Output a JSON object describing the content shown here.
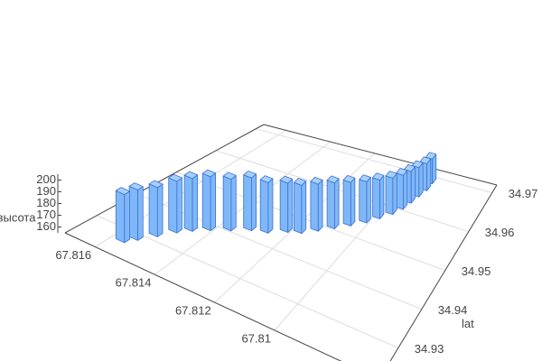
{
  "chart_data": {
    "type": "bar3d",
    "zlabel": "высота",
    "ylabel": "lat",
    "x": [
      67.8157,
      67.8155,
      67.8152,
      67.8149,
      67.8146,
      67.8142,
      67.8137,
      67.8132,
      67.8127,
      67.8122,
      67.8118,
      67.8114,
      67.811,
      67.8106,
      67.8102,
      67.8099,
      67.8096,
      67.8094,
      67.8093,
      67.8092,
      67.8091,
      67.8091
    ],
    "y": [
      34.927,
      34.929,
      34.932,
      34.935,
      34.937,
      34.939,
      34.941,
      34.943,
      34.944,
      34.946,
      34.947,
      34.949,
      34.951,
      34.953,
      34.955,
      34.957,
      34.959,
      34.961,
      34.963,
      34.965,
      34.967,
      34.969
    ],
    "z": [
      196,
      198,
      197,
      199,
      200,
      201,
      199,
      200,
      198,
      197,
      196,
      195,
      194,
      192,
      190,
      188,
      186,
      184,
      182,
      180,
      178,
      176
    ],
    "color": "#7fb8f8",
    "xlim": [
      67.8065,
      67.817
    ],
    "xticks": [
      67.81,
      67.812,
      67.814,
      67.816
    ],
    "ylim": [
      34.922,
      34.972
    ],
    "yticks": [
      34.93,
      34.94,
      34.95,
      34.96,
      34.97
    ],
    "zlim": [
      155,
      205
    ],
    "zticks": [
      160,
      170,
      180,
      190,
      200
    ],
    "grid": true
  }
}
